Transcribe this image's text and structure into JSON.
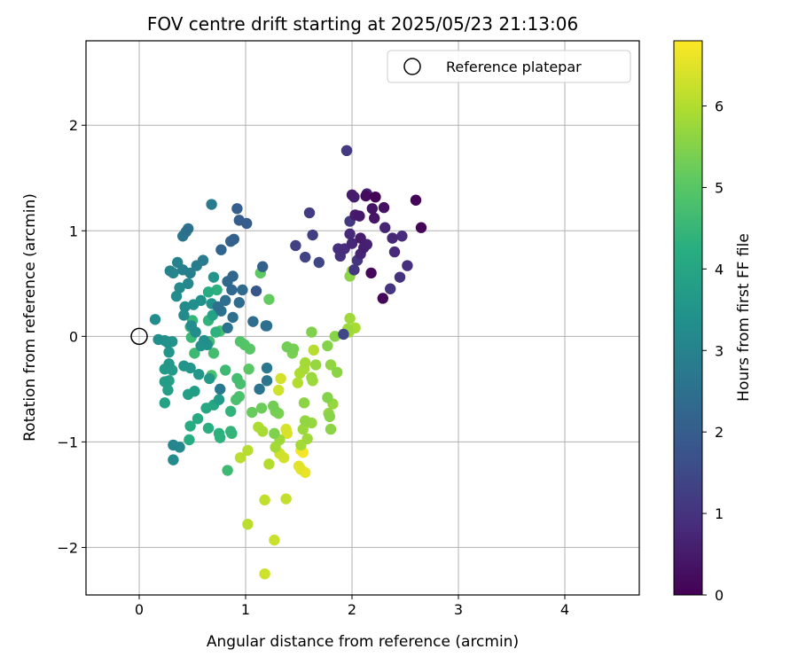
{
  "chart_data": {
    "type": "scatter",
    "title": "FOV centre drift starting at 2025/05/23 21:13:06",
    "xlabel": "Angular distance from reference (arcmin)",
    "ylabel": "Rotation from reference (arcmin)",
    "xlim": [
      -0.5,
      4.7
    ],
    "ylim": [
      -2.45,
      2.8
    ],
    "xticks": [
      0,
      1,
      2,
      3,
      4
    ],
    "yticks": [
      -2,
      -1,
      0,
      1,
      2
    ],
    "grid": true,
    "legend": {
      "placement": "top-right",
      "entries": [
        {
          "label": "Reference platepar",
          "marker": "open-circle"
        }
      ]
    },
    "reference_point": {
      "x": 0,
      "y": 0
    },
    "colorbar": {
      "label": "Hours from first FF file",
      "range": [
        0,
        6.8
      ],
      "ticks": [
        0,
        1,
        2,
        3,
        4,
        5,
        6
      ],
      "colormap": "viridis"
    },
    "points": [
      {
        "x": 2.22,
        "y": 1.32,
        "h": 0.05
      },
      {
        "x": 2.6,
        "y": 1.29,
        "h": 0.08
      },
      {
        "x": 2.65,
        "y": 1.03,
        "h": 0.1
      },
      {
        "x": 2.29,
        "y": 0.36,
        "h": 0.12
      },
      {
        "x": 2.18,
        "y": 0.6,
        "h": 0.15
      },
      {
        "x": 2.13,
        "y": 1.33,
        "h": 0.2
      },
      {
        "x": 2.3,
        "y": 1.22,
        "h": 0.3
      },
      {
        "x": 2.19,
        "y": 1.21,
        "h": 0.35
      },
      {
        "x": 2.21,
        "y": 1.12,
        "h": 0.4
      },
      {
        "x": 2.07,
        "y": 1.14,
        "h": 0.45
      },
      {
        "x": 2.03,
        "y": 1.15,
        "h": 0.5
      },
      {
        "x": 2.0,
        "y": 1.34,
        "h": 0.55
      },
      {
        "x": 2.02,
        "y": 1.32,
        "h": 0.6
      },
      {
        "x": 2.14,
        "y": 1.35,
        "h": 0.65
      },
      {
        "x": 2.31,
        "y": 1.03,
        "h": 0.7
      },
      {
        "x": 2.38,
        "y": 0.93,
        "h": 0.75
      },
      {
        "x": 2.4,
        "y": 0.8,
        "h": 0.8
      },
      {
        "x": 2.47,
        "y": 0.95,
        "h": 0.85
      },
      {
        "x": 2.52,
        "y": 0.67,
        "h": 0.9
      },
      {
        "x": 2.45,
        "y": 0.56,
        "h": 0.95
      },
      {
        "x": 2.36,
        "y": 0.45,
        "h": 1.0
      },
      {
        "x": 2.08,
        "y": 0.93,
        "h": 0.55
      },
      {
        "x": 2.11,
        "y": 0.84,
        "h": 0.6
      },
      {
        "x": 2.14,
        "y": 0.87,
        "h": 0.65
      },
      {
        "x": 2.08,
        "y": 0.78,
        "h": 0.7
      },
      {
        "x": 2.0,
        "y": 0.88,
        "h": 0.75
      },
      {
        "x": 1.98,
        "y": 0.97,
        "h": 0.8
      },
      {
        "x": 1.93,
        "y": 0.83,
        "h": 0.85
      },
      {
        "x": 1.87,
        "y": 0.83,
        "h": 0.9
      },
      {
        "x": 1.89,
        "y": 0.76,
        "h": 0.95
      },
      {
        "x": 2.05,
        "y": 0.72,
        "h": 1.0
      },
      {
        "x": 2.02,
        "y": 0.63,
        "h": 1.05
      },
      {
        "x": 1.98,
        "y": 1.09,
        "h": 1.1
      },
      {
        "x": 1.95,
        "y": 1.76,
        "h": 1.15
      },
      {
        "x": 1.6,
        "y": 1.17,
        "h": 1.2
      },
      {
        "x": 1.63,
        "y": 0.96,
        "h": 1.25
      },
      {
        "x": 1.47,
        "y": 0.86,
        "h": 1.3
      },
      {
        "x": 1.56,
        "y": 0.75,
        "h": 1.35
      },
      {
        "x": 1.69,
        "y": 0.7,
        "h": 1.4
      },
      {
        "x": 1.92,
        "y": 0.02,
        "h": 1.45
      },
      {
        "x": 1.1,
        "y": 0.43,
        "h": 1.8
      },
      {
        "x": 0.94,
        "y": 1.1,
        "h": 2.0
      },
      {
        "x": 1.01,
        "y": 1.07,
        "h": 2.0
      },
      {
        "x": 0.92,
        "y": 1.21,
        "h": 2.05
      },
      {
        "x": 0.89,
        "y": 0.92,
        "h": 2.1
      },
      {
        "x": 0.86,
        "y": 0.9,
        "h": 2.15
      },
      {
        "x": 0.77,
        "y": 0.82,
        "h": 2.2
      },
      {
        "x": 0.88,
        "y": 0.57,
        "h": 2.25
      },
      {
        "x": 0.83,
        "y": 0.52,
        "h": 2.3
      },
      {
        "x": 0.87,
        "y": 0.44,
        "h": 2.3
      },
      {
        "x": 0.97,
        "y": 0.44,
        "h": 2.35
      },
      {
        "x": 0.94,
        "y": 0.32,
        "h": 2.4
      },
      {
        "x": 1.16,
        "y": 0.66,
        "h": 2.1
      },
      {
        "x": 1.07,
        "y": 0.14,
        "h": 2.4
      },
      {
        "x": 1.19,
        "y": 0.1,
        "h": 2.45
      },
      {
        "x": 1.2,
        "y": 0.1,
        "h": 2.5
      },
      {
        "x": 0.88,
        "y": 0.18,
        "h": 2.5
      },
      {
        "x": 0.81,
        "y": 0.34,
        "h": 2.45
      },
      {
        "x": 0.74,
        "y": 0.28,
        "h": 2.5
      },
      {
        "x": 0.77,
        "y": 0.24,
        "h": 2.55
      },
      {
        "x": 0.83,
        "y": 0.08,
        "h": 2.6
      },
      {
        "x": 1.13,
        "y": -0.5,
        "h": 2.6
      },
      {
        "x": 1.2,
        "y": -0.42,
        "h": 2.65
      },
      {
        "x": 1.2,
        "y": -0.3,
        "h": 2.7
      },
      {
        "x": 0.76,
        "y": -0.5,
        "h": 2.75
      },
      {
        "x": 0.44,
        "y": 0.99,
        "h": 2.5
      },
      {
        "x": 0.46,
        "y": 1.02,
        "h": 2.55
      },
      {
        "x": 0.41,
        "y": 0.95,
        "h": 2.6
      },
      {
        "x": 0.68,
        "y": 1.25,
        "h": 2.8
      },
      {
        "x": 0.6,
        "y": 0.72,
        "h": 2.8
      },
      {
        "x": 0.54,
        "y": 0.67,
        "h": 2.85
      },
      {
        "x": 0.48,
        "y": 0.6,
        "h": 2.9
      },
      {
        "x": 0.41,
        "y": 0.63,
        "h": 2.95
      },
      {
        "x": 0.36,
        "y": 0.7,
        "h": 3.0
      },
      {
        "x": 0.29,
        "y": 0.62,
        "h": 3.05
      },
      {
        "x": 0.32,
        "y": 0.6,
        "h": 3.1
      },
      {
        "x": 0.46,
        "y": 0.5,
        "h": 3.15
      },
      {
        "x": 0.38,
        "y": 0.46,
        "h": 3.2
      },
      {
        "x": 0.35,
        "y": 0.38,
        "h": 3.25
      },
      {
        "x": 0.43,
        "y": 0.28,
        "h": 3.3
      },
      {
        "x": 0.51,
        "y": 0.3,
        "h": 3.35
      },
      {
        "x": 0.58,
        "y": 0.34,
        "h": 3.4
      },
      {
        "x": 0.68,
        "y": 0.31,
        "h": 3.45
      },
      {
        "x": 0.7,
        "y": 0.56,
        "h": 3.5
      },
      {
        "x": 0.42,
        "y": 0.2,
        "h": 3.2
      },
      {
        "x": 0.49,
        "y": 0.1,
        "h": 3.25
      },
      {
        "x": 0.53,
        "y": 0.04,
        "h": 3.3
      },
      {
        "x": 0.61,
        "y": -0.04,
        "h": 3.35
      },
      {
        "x": 0.64,
        "y": -0.08,
        "h": 3.4
      },
      {
        "x": 0.58,
        "y": -0.09,
        "h": 3.45
      },
      {
        "x": 0.15,
        "y": 0.16,
        "h": 3.3
      },
      {
        "x": 0.18,
        "y": -0.03,
        "h": 3.35
      },
      {
        "x": 0.24,
        "y": -0.04,
        "h": 3.4
      },
      {
        "x": 0.27,
        "y": -0.06,
        "h": 3.45
      },
      {
        "x": 0.31,
        "y": -0.05,
        "h": 3.5
      },
      {
        "x": 0.28,
        "y": -0.15,
        "h": 3.55
      },
      {
        "x": 0.28,
        "y": -0.26,
        "h": 3.6
      },
      {
        "x": 0.24,
        "y": -0.31,
        "h": 3.65
      },
      {
        "x": 0.31,
        "y": -0.32,
        "h": 3.7
      },
      {
        "x": 0.24,
        "y": -0.43,
        "h": 3.75
      },
      {
        "x": 0.27,
        "y": -0.51,
        "h": 3.8
      },
      {
        "x": 0.28,
        "y": -0.42,
        "h": 3.85
      },
      {
        "x": 0.24,
        "y": -0.63,
        "h": 3.9
      },
      {
        "x": 0.32,
        "y": -1.03,
        "h": 3.1
      },
      {
        "x": 0.38,
        "y": -1.05,
        "h": 3.15
      },
      {
        "x": 0.32,
        "y": -1.17,
        "h": 3.2
      },
      {
        "x": 0.42,
        "y": -0.28,
        "h": 3.5
      },
      {
        "x": 0.48,
        "y": -0.3,
        "h": 3.55
      },
      {
        "x": 0.56,
        "y": -0.36,
        "h": 3.6
      },
      {
        "x": 0.66,
        "y": -0.4,
        "h": 3.65
      },
      {
        "x": 0.75,
        "y": -0.6,
        "h": 3.7
      },
      {
        "x": 0.52,
        "y": -0.52,
        "h": 3.75
      },
      {
        "x": 0.46,
        "y": -0.55,
        "h": 3.8
      },
      {
        "x": 0.69,
        "y": 0.2,
        "h": 3.9
      },
      {
        "x": 0.65,
        "y": 0.42,
        "h": 4.2
      },
      {
        "x": 0.73,
        "y": 0.44,
        "h": 4.3
      },
      {
        "x": 0.72,
        "y": 0.04,
        "h": 4.35
      },
      {
        "x": 0.65,
        "y": 0.15,
        "h": 4.4
      },
      {
        "x": 0.5,
        "y": 0.15,
        "h": 4.45
      },
      {
        "x": 0.48,
        "y": 0.09,
        "h": 4.5
      },
      {
        "x": 0.49,
        "y": -0.01,
        "h": 4.55
      },
      {
        "x": 0.52,
        "y": -0.16,
        "h": 4.6
      },
      {
        "x": 0.66,
        "y": -0.05,
        "h": 4.65
      },
      {
        "x": 0.7,
        "y": -0.16,
        "h": 4.7
      },
      {
        "x": 0.76,
        "y": 0.05,
        "h": 4.75
      },
      {
        "x": 0.68,
        "y": -0.37,
        "h": 4.8
      },
      {
        "x": 0.7,
        "y": -0.65,
        "h": 4.0
      },
      {
        "x": 0.63,
        "y": -0.68,
        "h": 4.05
      },
      {
        "x": 0.55,
        "y": -0.78,
        "h": 4.1
      },
      {
        "x": 0.48,
        "y": -0.85,
        "h": 4.15
      },
      {
        "x": 0.47,
        "y": -0.98,
        "h": 4.2
      },
      {
        "x": 0.65,
        "y": -0.87,
        "h": 4.25
      },
      {
        "x": 0.75,
        "y": -0.92,
        "h": 4.3
      },
      {
        "x": 0.76,
        "y": -0.96,
        "h": 4.35
      },
      {
        "x": 0.86,
        "y": -0.71,
        "h": 4.4
      },
      {
        "x": 0.86,
        "y": -0.9,
        "h": 4.45
      },
      {
        "x": 0.87,
        "y": -0.92,
        "h": 4.5
      },
      {
        "x": 0.83,
        "y": -1.27,
        "h": 4.6
      },
      {
        "x": 0.81,
        "y": -0.32,
        "h": 4.6
      },
      {
        "x": 0.92,
        "y": -0.4,
        "h": 4.7
      },
      {
        "x": 0.95,
        "y": -0.45,
        "h": 4.75
      },
      {
        "x": 0.91,
        "y": -0.6,
        "h": 4.8
      },
      {
        "x": 0.94,
        "y": -0.57,
        "h": 4.85
      },
      {
        "x": 0.95,
        "y": -0.05,
        "h": 4.9
      },
      {
        "x": 0.99,
        "y": -0.08,
        "h": 4.95
      },
      {
        "x": 1.04,
        "y": -0.12,
        "h": 5.0
      },
      {
        "x": 1.03,
        "y": -0.31,
        "h": 5.05
      },
      {
        "x": 1.14,
        "y": 0.6,
        "h": 5.1
      },
      {
        "x": 1.22,
        "y": 0.35,
        "h": 5.15
      },
      {
        "x": 1.06,
        "y": -0.72,
        "h": 5.2
      },
      {
        "x": 1.15,
        "y": -0.68,
        "h": 5.25
      },
      {
        "x": 1.26,
        "y": -0.66,
        "h": 5.3
      },
      {
        "x": 1.28,
        "y": -0.71,
        "h": 5.35
      },
      {
        "x": 1.31,
        "y": -0.73,
        "h": 5.4
      },
      {
        "x": 1.27,
        "y": -0.92,
        "h": 5.45
      },
      {
        "x": 1.39,
        "y": -0.1,
        "h": 5.3
      },
      {
        "x": 1.45,
        "y": -0.12,
        "h": 5.35
      },
      {
        "x": 1.44,
        "y": -0.16,
        "h": 5.4
      },
      {
        "x": 1.62,
        "y": 0.04,
        "h": 5.45
      },
      {
        "x": 1.77,
        "y": -0.09,
        "h": 5.5
      },
      {
        "x": 1.84,
        "y": 0.0,
        "h": 5.55
      },
      {
        "x": 1.86,
        "y": -0.34,
        "h": 5.6
      },
      {
        "x": 1.8,
        "y": -0.27,
        "h": 5.65
      },
      {
        "x": 1.66,
        "y": -0.27,
        "h": 5.7
      },
      {
        "x": 1.62,
        "y": -0.39,
        "h": 5.75
      },
      {
        "x": 1.63,
        "y": -0.42,
        "h": 5.8
      },
      {
        "x": 1.56,
        "y": -0.25,
        "h": 5.85
      },
      {
        "x": 1.55,
        "y": -0.31,
        "h": 5.9
      },
      {
        "x": 1.51,
        "y": -0.35,
        "h": 5.95
      },
      {
        "x": 1.49,
        "y": -0.44,
        "h": 6.0
      },
      {
        "x": 1.64,
        "y": -0.13,
        "h": 6.05
      },
      {
        "x": 1.98,
        "y": 0.57,
        "h": 5.6
      },
      {
        "x": 2.0,
        "y": 0.62,
        "h": 5.7
      },
      {
        "x": 1.96,
        "y": 0.07,
        "h": 5.75
      },
      {
        "x": 1.98,
        "y": 0.17,
        "h": 5.8
      },
      {
        "x": 1.97,
        "y": 0.04,
        "h": 5.85
      },
      {
        "x": 2.03,
        "y": 0.08,
        "h": 5.9
      },
      {
        "x": 1.77,
        "y": -0.58,
        "h": 5.5
      },
      {
        "x": 1.79,
        "y": -0.76,
        "h": 5.55
      },
      {
        "x": 1.8,
        "y": -0.88,
        "h": 5.6
      },
      {
        "x": 1.78,
        "y": -0.73,
        "h": 5.65
      },
      {
        "x": 1.82,
        "y": -0.64,
        "h": 5.7
      },
      {
        "x": 1.55,
        "y": -0.63,
        "h": 5.6
      },
      {
        "x": 1.56,
        "y": -0.8,
        "h": 5.65
      },
      {
        "x": 1.62,
        "y": -0.82,
        "h": 5.7
      },
      {
        "x": 1.54,
        "y": -0.88,
        "h": 5.75
      },
      {
        "x": 1.58,
        "y": -0.97,
        "h": 5.8
      },
      {
        "x": 1.52,
        "y": -1.03,
        "h": 5.85
      },
      {
        "x": 1.32,
        "y": -0.98,
        "h": 5.8
      },
      {
        "x": 1.28,
        "y": -1.05,
        "h": 5.85
      },
      {
        "x": 1.16,
        "y": -0.9,
        "h": 5.9
      },
      {
        "x": 1.12,
        "y": -0.86,
        "h": 5.95
      },
      {
        "x": 1.22,
        "y": -1.21,
        "h": 6.0
      },
      {
        "x": 1.02,
        "y": -1.08,
        "h": 6.05
      },
      {
        "x": 0.95,
        "y": -1.15,
        "h": 6.1
      },
      {
        "x": 1.02,
        "y": -1.78,
        "h": 6.1
      },
      {
        "x": 1.18,
        "y": -1.55,
        "h": 6.15
      },
      {
        "x": 1.38,
        "y": -1.54,
        "h": 6.2
      },
      {
        "x": 1.27,
        "y": -1.93,
        "h": 6.25
      },
      {
        "x": 1.18,
        "y": -2.25,
        "h": 6.3
      },
      {
        "x": 1.32,
        "y": -1.11,
        "h": 6.3
      },
      {
        "x": 1.36,
        "y": -1.15,
        "h": 6.35
      },
      {
        "x": 1.31,
        "y": -0.51,
        "h": 6.3
      },
      {
        "x": 1.33,
        "y": -0.4,
        "h": 6.35
      },
      {
        "x": 1.38,
        "y": -0.88,
        "h": 6.4
      },
      {
        "x": 1.39,
        "y": -0.92,
        "h": 6.45
      },
      {
        "x": 1.5,
        "y": -1.23,
        "h": 6.5
      },
      {
        "x": 1.52,
        "y": -1.26,
        "h": 6.55
      },
      {
        "x": 1.56,
        "y": -1.29,
        "h": 6.6
      },
      {
        "x": 1.52,
        "y": -1.08,
        "h": 6.7
      },
      {
        "x": 1.54,
        "y": -1.1,
        "h": 6.75
      }
    ]
  }
}
